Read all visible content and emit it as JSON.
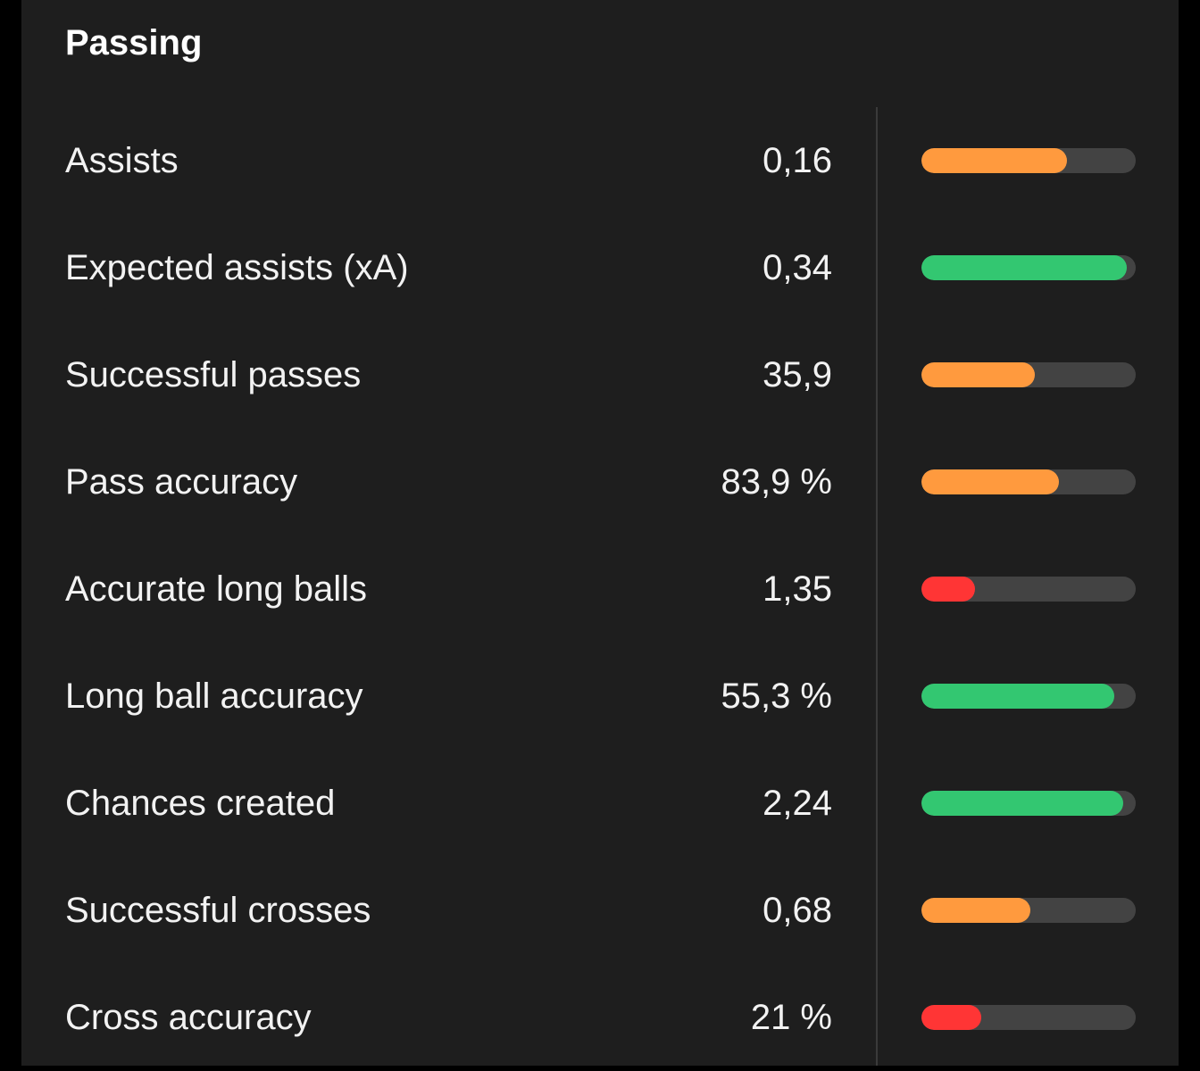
{
  "section": {
    "title": "Passing"
  },
  "colors": {
    "orange": "#ff9a3e",
    "green": "#33c771",
    "red": "#ff3535"
  },
  "stats": [
    {
      "label": "Assists",
      "value": "0,16",
      "percentile": 0.68,
      "color": "orange"
    },
    {
      "label": "Expected assists (xA)",
      "value": "0,34",
      "percentile": 0.96,
      "color": "green"
    },
    {
      "label": "Successful passes",
      "value": "35,9",
      "percentile": 0.53,
      "color": "orange"
    },
    {
      "label": "Pass accuracy",
      "value": "83,9 %",
      "percentile": 0.64,
      "color": "orange"
    },
    {
      "label": "Accurate long balls",
      "value": "1,35",
      "percentile": 0.25,
      "color": "red"
    },
    {
      "label": "Long ball accuracy",
      "value": "55,3 %",
      "percentile": 0.9,
      "color": "green"
    },
    {
      "label": "Chances created",
      "value": "2,24",
      "percentile": 0.94,
      "color": "green"
    },
    {
      "label": "Successful crosses",
      "value": "0,68",
      "percentile": 0.51,
      "color": "orange"
    },
    {
      "label": "Cross accuracy",
      "value": "21 %",
      "percentile": 0.28,
      "color": "red"
    }
  ]
}
